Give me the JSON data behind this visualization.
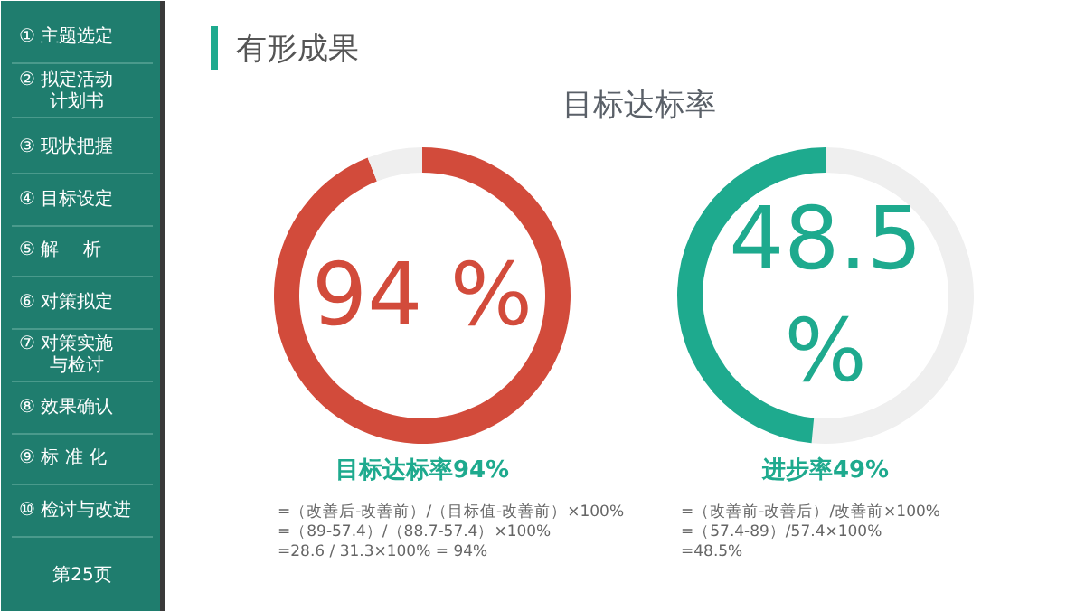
{
  "chart_data": [
    {
      "type": "other",
      "annotations": [
        "① 主题选定",
        "② 拟定活动计划书",
        "③ 现状把握",
        "④ 目标设定",
        "⑤ 解　 析",
        "⑥ 对策拟定",
        "⑦ 对策实施与检讨",
        "⑧ 效果确认",
        "⑨ 标 准 化",
        "⑩ 检讨与改进",
        "第25页"
      ]
    },
    {
      "type": "other",
      "title": "有形成果",
      "subtitle": "目标达标率"
    },
    {
      "type": "donut",
      "title": "目标达标率94%",
      "categories": [
        null,
        null
      ],
      "values": [
        94,
        6
      ],
      "colors": [
        "#d24b3b",
        "#efefef"
      ],
      "subtitle": "94 %",
      "annotations": [
        "=（改善后-改善前）/（目标值-改善前）×100%",
        "=（89-57.4）/（88.7-57.4）×100%",
        "=28.6 / 31.3×100% = 94%"
      ]
    },
    {
      "type": "donut",
      "title": "进步率49%",
      "categories": [
        null,
        null
      ],
      "values": [
        51.5,
        48.5
      ],
      "colors": [
        "#efefef",
        "#1eaa8e"
      ],
      "subtitle": "48.5\n%",
      "annotations": [
        "=（改善前-改善后）/改善前×100%",
        "=（57.4-89）/57.4×100%",
        "=48.5%"
      ]
    }
  ]
}
